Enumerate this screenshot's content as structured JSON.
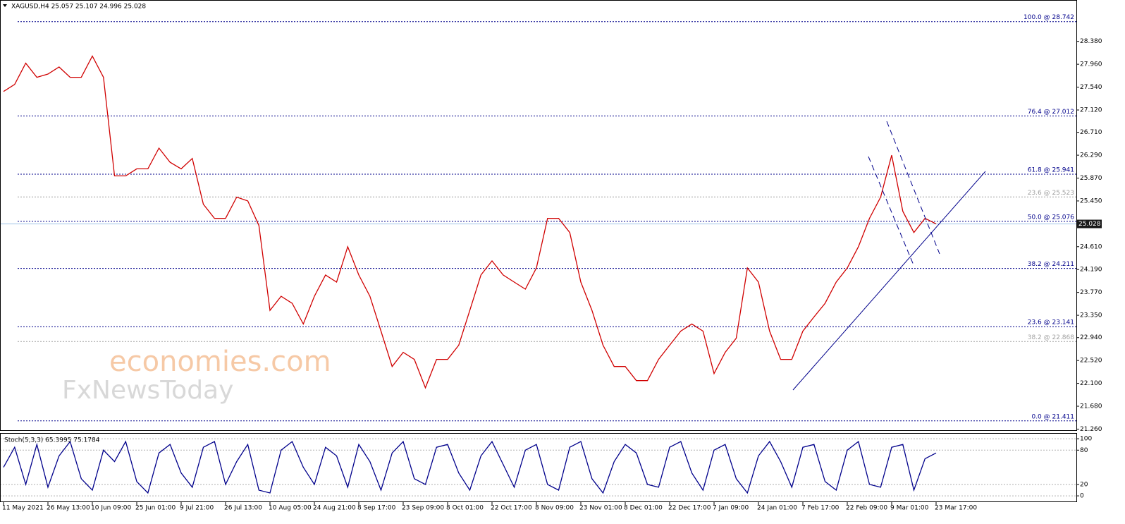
{
  "chart_data": [
    {
      "type": "line",
      "title": "XAGUSD,H4  25.057 25.107 24.996 25.028",
      "color": "#d00000",
      "categories": [
        "11 May 2021",
        null,
        null,
        null,
        "26 May 13:00",
        null,
        null,
        null,
        "10 Jun 09:00",
        null,
        null,
        null,
        "25 Jun 01:00",
        null,
        null,
        null,
        "9 Jul 21:00",
        null,
        null,
        null,
        "26 Jul 13:00",
        null,
        null,
        null,
        "10 Aug 05:00",
        null,
        null,
        null,
        "24 Aug 21:00",
        null,
        null,
        null,
        "8 Sep 17:00",
        null,
        null,
        null,
        "23 Sep 09:00",
        null,
        null,
        null,
        "8 Oct 01:00",
        null,
        null,
        null,
        "22 Oct 17:00",
        null,
        null,
        null,
        "8 Nov 09:00",
        null,
        null,
        null,
        "23 Nov 01:00",
        null,
        null,
        null,
        "8 Dec 01:00",
        null,
        null,
        null,
        "22 Dec 17:00",
        null,
        null,
        null,
        "7 Jan 09:00",
        null,
        null,
        null,
        "24 Jan 01:00",
        null,
        null,
        null,
        "7 Feb 17:00",
        null,
        null,
        null,
        "22 Feb 09:00",
        null,
        null,
        null,
        "9 Mar 01:00",
        null,
        null,
        null,
        "23 Mar 17:00"
      ],
      "values": [
        27.46,
        27.59,
        27.98,
        27.72,
        27.78,
        27.91,
        27.72,
        27.72,
        28.11,
        27.72,
        25.91,
        25.91,
        26.04,
        26.04,
        26.42,
        26.16,
        26.04,
        26.23,
        25.39,
        25.13,
        25.13,
        25.52,
        25.45,
        25.0,
        23.44,
        23.7,
        23.57,
        23.19,
        23.7,
        24.09,
        23.96,
        24.61,
        24.09,
        23.7,
        23.06,
        22.41,
        22.67,
        22.54,
        22.02,
        22.54,
        22.54,
        22.8,
        23.44,
        24.09,
        24.35,
        24.09,
        23.96,
        23.83,
        24.22,
        25.13,
        25.13,
        24.87,
        23.96,
        23.44,
        22.8,
        22.41,
        22.41,
        22.15,
        22.15,
        22.54,
        22.8,
        23.06,
        23.19,
        23.06,
        22.28,
        22.67,
        22.93,
        24.22,
        23.96,
        23.06,
        22.54,
        22.54,
        23.06,
        23.32,
        23.57,
        23.96,
        24.22,
        24.61,
        25.13,
        25.52,
        26.29,
        25.26,
        24.87,
        25.13,
        25.03
      ],
      "ylim": [
        21.24,
        29.14
      ],
      "yticks": [
        {
          "value": 28.38,
          "label": "28.380"
        },
        {
          "value": 27.96,
          "label": "27.960"
        },
        {
          "value": 27.54,
          "label": "27.540"
        },
        {
          "value": 27.12,
          "label": "27.120"
        },
        {
          "value": 26.71,
          "label": "26.710"
        },
        {
          "value": 26.29,
          "label": "26.290"
        },
        {
          "value": 25.87,
          "label": "25.870"
        },
        {
          "value": 25.45,
          "label": "25.450"
        },
        {
          "value": 24.61,
          "label": "24.610"
        },
        {
          "value": 24.19,
          "label": "24.190"
        },
        {
          "value": 23.77,
          "label": "23.770"
        },
        {
          "value": 23.35,
          "label": "23.350"
        },
        {
          "value": 22.94,
          "label": "22.940"
        },
        {
          "value": 22.52,
          "label": "22.520"
        },
        {
          "value": 22.1,
          "label": "22.100"
        },
        {
          "value": 21.68,
          "label": "21.680"
        },
        {
          "value": 21.26,
          "label": "21.260"
        }
      ],
      "current_price": 25.028,
      "levels": [
        {
          "value": 28.742,
          "label": "100.0 @ 28.742",
          "color": "#00008b"
        },
        {
          "value": 27.012,
          "label": "76.4 @ 27.012",
          "color": "#00008b"
        },
        {
          "value": 25.941,
          "label": "61.8 @ 25.941",
          "color": "#00008b"
        },
        {
          "value": 25.523,
          "label": "23.6 @ 25.523",
          "color": "#a0a0a0"
        },
        {
          "value": 25.076,
          "label": "50.0 @ 25.076",
          "color": "#00008b"
        },
        {
          "value": 24.211,
          "label": "38.2 @ 24.211",
          "color": "#00008b"
        },
        {
          "value": 23.141,
          "label": "23.6 @ 23.141",
          "color": "#00008b"
        },
        {
          "value": 22.868,
          "label": "38.2 @ 22.868",
          "color": "#a0a0a0"
        },
        {
          "value": 21.411,
          "label": "0.0 @ 21.411",
          "color": "#00008b"
        }
      ],
      "watermark": [
        "economies.com",
        "FxNewsToday"
      ]
    },
    {
      "type": "line",
      "title": "Stoch(5,3,3) 65.3995 75.1784",
      "color": "#00008b",
      "values": [
        50,
        85,
        20,
        90,
        15,
        70,
        95,
        30,
        10,
        80,
        60,
        95,
        25,
        5,
        75,
        90,
        40,
        15,
        85,
        95,
        20,
        60,
        90,
        10,
        5,
        80,
        95,
        50,
        20,
        85,
        70,
        15,
        90,
        60,
        10,
        75,
        95,
        30,
        20,
        85,
        90,
        40,
        10,
        70,
        95,
        55,
        15,
        80,
        90,
        20,
        10,
        85,
        95,
        30,
        5,
        60,
        90,
        75,
        20,
        15,
        85,
        95,
        40,
        10,
        80,
        90,
        30,
        5,
        70,
        95,
        60,
        15,
        85,
        90,
        25,
        10,
        80,
        95,
        20,
        15,
        85,
        90,
        10,
        65,
        75
      ],
      "ylim": [
        -11,
        110
      ],
      "yticks": [
        100,
        80,
        20,
        0
      ]
    }
  ]
}
